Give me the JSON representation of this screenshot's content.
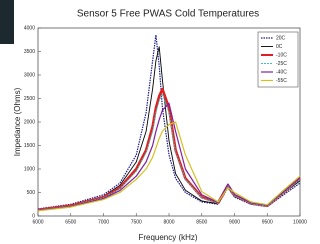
{
  "chart_data": {
    "type": "line",
    "title": "Sensor 5 Free PWAS Cold Temperatures",
    "xlabel": "Frequency (kHz)",
    "ylabel": "Impedance (Ohms)",
    "x": [
      6000,
      6500,
      7000,
      7250,
      7500,
      7650,
      7750,
      7800,
      7850,
      7900,
      8000,
      8100,
      8250,
      8500,
      8750,
      8900,
      9000,
      9250,
      9500,
      9750,
      10000
    ],
    "series": [
      {
        "name": "20C",
        "color": "#1a1a8a",
        "values": [
          150,
          250,
          450,
          700,
          1300,
          2200,
          3300,
          3850,
          3200,
          2300,
          1300,
          800,
          500,
          300,
          250,
          600,
          400,
          250,
          200,
          450,
          700
        ]
      },
      {
        "name": "0C",
        "color": "#000000",
        "values": [
          140,
          230,
          420,
          650,
          1150,
          1800,
          2700,
          3300,
          3600,
          2900,
          1600,
          900,
          550,
          320,
          260,
          620,
          420,
          260,
          210,
          480,
          750
        ]
      },
      {
        "name": "-10C",
        "color": "#e02020",
        "values": [
          130,
          220,
          400,
          600,
          1000,
          1400,
          1900,
          2300,
          2550,
          2700,
          2300,
          1400,
          800,
          400,
          280,
          650,
          440,
          270,
          220,
          500,
          800
        ]
      },
      {
        "name": "-25C",
        "color": "#40c0c0",
        "values": [
          130,
          210,
          390,
          580,
          950,
          1350,
          1800,
          2200,
          2450,
          2600,
          2200,
          1350,
          780,
          390,
          270,
          640,
          430,
          260,
          210,
          490,
          780
        ]
      },
      {
        "name": "-40C",
        "color": "#8020a0",
        "values": [
          120,
          200,
          370,
          540,
          850,
          1150,
          1500,
          1800,
          2050,
          2250,
          2400,
          1800,
          1000,
          450,
          290,
          680,
          460,
          280,
          230,
          520,
          820
        ]
      },
      {
        "name": "-55C",
        "color": "#d4c020",
        "values": [
          110,
          190,
          350,
          500,
          780,
          1000,
          1250,
          1450,
          1650,
          1800,
          1950,
          2000,
          1300,
          520,
          300,
          600,
          500,
          300,
          240,
          550,
          850
        ]
      }
    ],
    "xlim": [
      6000,
      10000
    ],
    "xticks": [
      6000,
      6500,
      7000,
      7500,
      8000,
      8500,
      9000,
      9500,
      10000
    ],
    "ylim": [
      0,
      4000
    ],
    "yticks": [
      0,
      500,
      1000,
      1500,
      2000,
      2500,
      3000,
      3500,
      4000
    ],
    "legend": "upper right",
    "grid": false
  }
}
